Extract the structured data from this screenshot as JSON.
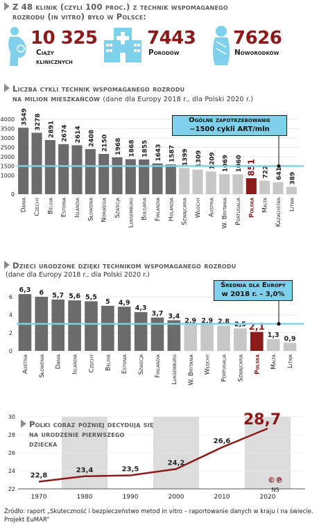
{
  "header": {
    "title_line1": "Z 48 klinik (czyli 100 proc.) z technik wspomaganego",
    "title_line2": "rozrodu (in vitro) było w Polsce:"
  },
  "stats": [
    {
      "value": "10 325",
      "label_line1": "Ciąży",
      "label_line2": "klinicznych",
      "icon": "pregnancy-icon"
    },
    {
      "value": "7443",
      "label_line1": "Porodów",
      "label_line2": "",
      "icon": "hospital-icon"
    },
    {
      "value": "7626",
      "label_line1": "Noworodków",
      "label_line2": "",
      "icon": "baby-icon"
    }
  ],
  "colors": {
    "red": "#8b1a1a",
    "dark": "#6b6b6b",
    "light": "#c7c7c7",
    "accent": "#7fd0ea",
    "band": "#dcdcdc"
  },
  "chart1_header": {
    "line1": "Liczba cykli technik wspomaganego rozrodu",
    "line2": "na milion mieszkańców",
    "sub": "(dane dla Europy 2018 r., dla Polski 2020 r.)",
    "callout_line1": "Ogólne zapotrzebowanie",
    "callout_line2": "~1500 cykli ART/mln"
  },
  "chart2_header": {
    "line1": "Dzieci urodzone dzięki technikom wspomaganego rozrodu",
    "sub": "(dane dla Europy 2018 r., dla Polski 2020 r.)",
    "callout_line1": "Średnia dla Europy",
    "callout_line2": "w 2018 r. – 3,0%"
  },
  "chart3_header": {
    "line1": "Polki coraz później decydują się",
    "line2": "na urodzenie pierwszego",
    "line3": "dziecka"
  },
  "copyright": {
    "symbols": "©℗",
    "initials": "NS"
  },
  "footer": {
    "source": "Źródło: raport „Skuteczność i bezpieczeństwo metod in vitro – raportowanie danych w kraju i na świecie. Projekt EuMAR”"
  },
  "chart_data": [
    {
      "type": "bar",
      "categories": [
        "Dania",
        "Czechy",
        "Belgia",
        "Estonia",
        "Islandia",
        "Słowenia",
        "Norwegia",
        "Szwecja",
        "Luksemburg",
        "Bułgaria",
        "Finlandia",
        "Holandia",
        "Szwajcaria",
        "Włochy",
        "Austria",
        "W. Brytania",
        "Portugalia",
        "Polska",
        "Malta",
        "Kazachstan",
        "Litwa"
      ],
      "values": [
        3549,
        3278,
        2891,
        2674,
        2614,
        2408,
        2150,
        1968,
        1868,
        1855,
        1643,
        1587,
        1399,
        1309,
        1209,
        1069,
        1060,
        851,
        722,
        641,
        389
      ],
      "value_labels": [
        "3549",
        "3278",
        "2891",
        "2674",
        "2614",
        "2408",
        "2150",
        "1968",
        "1868",
        "1855",
        "1643",
        "1587",
        "1399",
        "1309",
        "1209",
        "1069",
        "1060",
        "851",
        "722",
        "641",
        "389"
      ],
      "highlight": "Polska",
      "reference_line": 1500,
      "ylim": [
        0,
        4000
      ],
      "yticks": [
        "0",
        "1000",
        "1500",
        "2000",
        "2500",
        "3000",
        "3500",
        "4000"
      ],
      "ytick_values": [
        0,
        1000,
        1500,
        2000,
        2500,
        3000,
        3500,
        4000
      ]
    },
    {
      "type": "bar",
      "categories": [
        "Austria",
        "Słowenia",
        "Dania",
        "Islandia",
        "Czechy",
        "Belgia",
        "Estonia",
        "Szwecja",
        "Finlandia",
        "Luksemburg",
        "W. Brytania",
        "Włochy",
        "Portugalia",
        "Szwajcaria",
        "Polska",
        "Malta",
        "Litwa"
      ],
      "values": [
        6.3,
        6,
        5.7,
        5.6,
        5.5,
        5,
        4.9,
        4.3,
        3.7,
        3.4,
        2.9,
        2.9,
        2.8,
        2.5,
        2.1,
        1.3,
        0.9
      ],
      "value_labels": [
        "6,3",
        "6",
        "5,7",
        "5,6",
        "5,5",
        "5",
        "4,9",
        "4,3",
        "3,7",
        "3,4",
        "2,9",
        "2,9",
        "2,8",
        "2,5",
        "2,1",
        "1,3",
        "0,9"
      ],
      "highlight": "Polska",
      "reference_line": 3.0,
      "ylim": [
        0,
        7
      ],
      "yticks": [
        "0",
        "2",
        "4",
        "6"
      ],
      "ytick_values": [
        0,
        2,
        4,
        6
      ]
    },
    {
      "type": "line",
      "x": [
        1970,
        1980,
        1990,
        2000,
        2010,
        2020
      ],
      "x_labels": [
        "1970",
        "1980",
        "1990",
        "2000",
        "2010",
        "2020"
      ],
      "y": [
        22.8,
        23.4,
        23.5,
        24.2,
        26.6,
        28.7
      ],
      "y_labels": [
        "22,8",
        "23,4",
        "23,5",
        "24,2",
        "26,6",
        "28,7"
      ],
      "ylim": [
        22,
        30
      ],
      "yticks": [
        "22",
        "24",
        "26",
        "28",
        "30"
      ],
      "ytick_values": [
        22,
        24,
        26,
        28,
        30
      ]
    }
  ]
}
